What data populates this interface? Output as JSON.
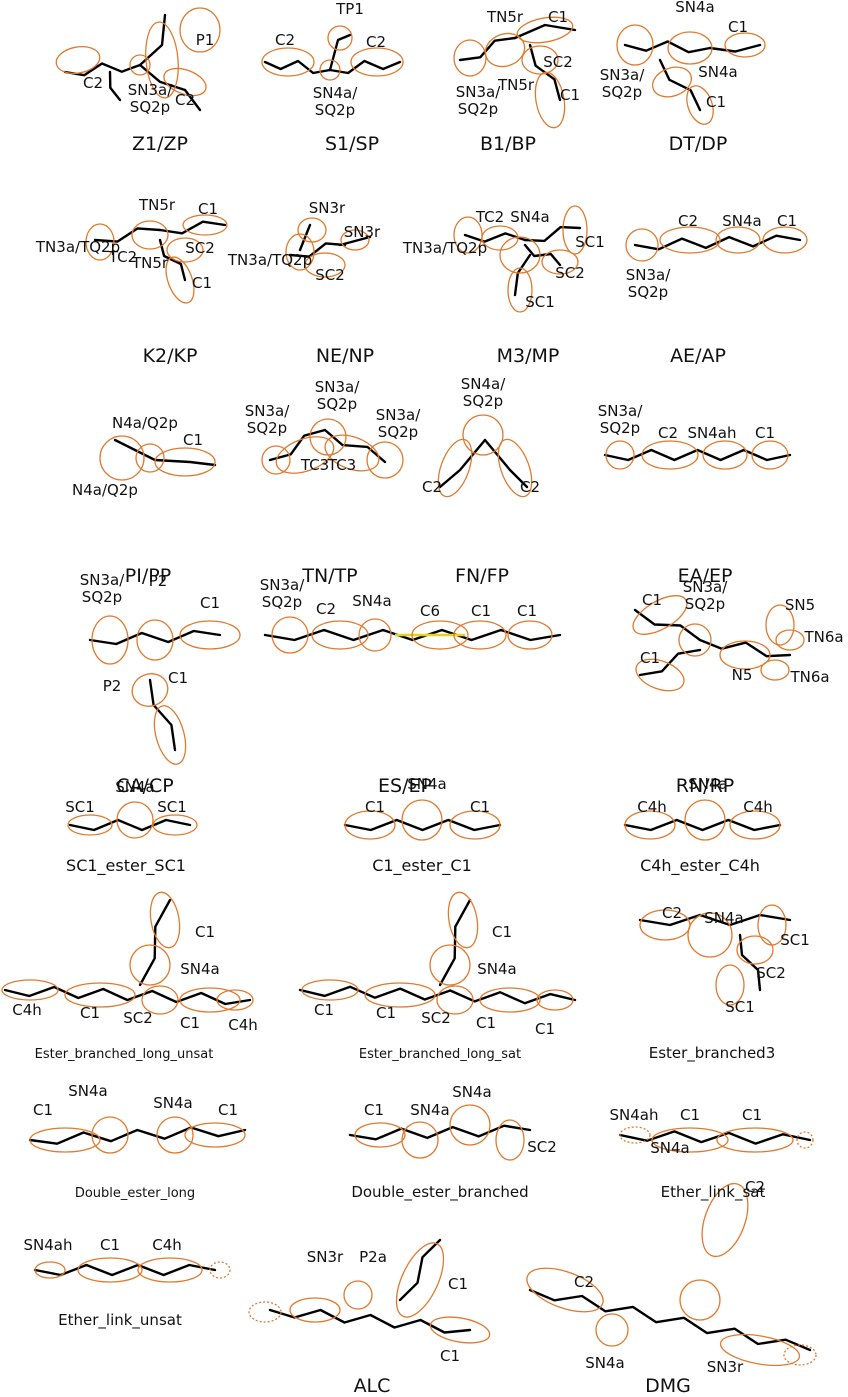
{
  "molecules": [
    {
      "caption": "Z1/ZP",
      "labels": [
        "P1",
        "C2",
        "SN3a/\nSQ2p",
        "C2"
      ]
    },
    {
      "caption": "S1/SP",
      "labels": [
        "TP1",
        "C2",
        "C2",
        "SN4a/\nSQ2p"
      ]
    },
    {
      "caption": "B1/BP",
      "labels": [
        "TN5r",
        "C1",
        "SC2",
        "SN3a/\nSQ2p",
        "TN5r",
        "C1"
      ]
    },
    {
      "caption": "DT/DP",
      "labels": [
        "SN4a",
        "C1",
        "SN3a/\nSQ2p",
        "SN4a",
        "C1"
      ]
    },
    {
      "caption": "K2/KP",
      "labels": [
        "TN3a/TQ2p",
        "TN5r",
        "C1",
        "SC2",
        "TC2",
        "TN5r",
        "C1"
      ]
    },
    {
      "caption": "NE/NP",
      "labels": [
        "TN3a/TQ2p",
        "SN3r",
        "SN3r",
        "SC2"
      ]
    },
    {
      "caption": "M3/MP",
      "labels": [
        "TN3a/TQ2p",
        "TC2",
        "SN4a",
        "SC1",
        "SC2",
        "SC1"
      ]
    },
    {
      "caption": "AE/AP",
      "labels": [
        "C2",
        "SN4a",
        "C1",
        "SN3a/\nSQ2p"
      ]
    },
    {
      "caption": "PI/PP",
      "labels": [
        "N4a/Q2p",
        "C1",
        "N4a/Q2p"
      ]
    },
    {
      "caption": "TN/TP",
      "labels": [
        "SN3a/\nSQ2p",
        "SN3a/\nSQ2p",
        "SN3a/\nSQ2p",
        "TC3",
        "TC3"
      ]
    },
    {
      "caption": "FN/FP",
      "labels": [
        "SN4a/\nSQ2p",
        "C2",
        "C2"
      ]
    },
    {
      "caption": "EA/EP",
      "labels": [
        "SN3a/\nSQ2p",
        "C2",
        "SN4ah",
        "C1"
      ]
    },
    {
      "caption": "CA/CP",
      "labels": [
        "SN3a/\nSQ2p",
        "P2",
        "C1",
        "P2",
        "C1"
      ]
    },
    {
      "caption": "ES/EP",
      "labels": [
        "SN3a/\nSQ2p",
        "C2",
        "SN4a",
        "C6",
        "C1",
        "C1"
      ]
    },
    {
      "caption": "RN/RP",
      "labels": [
        "C1",
        "SN3a/\nSQ2p",
        "SN5",
        "TN6a",
        "C1",
        "N5",
        "TN6a"
      ]
    },
    {
      "caption": "SC1_ester_SC1",
      "labels": [
        "SN4a",
        "SC1",
        "SC1"
      ]
    },
    {
      "caption": "C1_ester_C1",
      "labels": [
        "SN4a",
        "C1",
        "C1"
      ]
    },
    {
      "caption": "C4h_ester_C4h",
      "labels": [
        "SN4a",
        "C4h",
        "C4h"
      ]
    },
    {
      "caption": "Ester_branched_long_unsat",
      "labels": [
        "C1",
        "SN4a",
        "C4h",
        "C1",
        "SC2",
        "C1",
        "C4h"
      ]
    },
    {
      "caption": "Ester_branched_long_sat",
      "labels": [
        "C1",
        "SN4a",
        "C1",
        "C1",
        "SC2",
        "C1",
        "C1"
      ]
    },
    {
      "caption": "Ester_branched3",
      "labels": [
        "C2",
        "SN4a",
        "SC1",
        "SC2",
        "SC1"
      ]
    },
    {
      "caption": "Double_ester_long",
      "labels": [
        "C1",
        "SN4a",
        "SN4a",
        "C1"
      ]
    },
    {
      "caption": "Double_ester_branched",
      "labels": [
        "C1",
        "SN4a",
        "SN4a",
        "SC2"
      ]
    },
    {
      "caption": "Ether_link_sat",
      "labels": [
        "SN4ah",
        "C1",
        "C1"
      ]
    },
    {
      "caption": "Ether_link_unsat",
      "labels": [
        "SN4ah",
        "C1",
        "C4h"
      ]
    },
    {
      "caption": "ALC",
      "labels": [
        "SN3r",
        "P2a",
        "C1",
        "C1"
      ]
    },
    {
      "caption": "DMG",
      "labels": [
        "SN4a",
        "C2",
        "C2",
        "SN4a",
        "SN3r"
      ]
    }
  ]
}
